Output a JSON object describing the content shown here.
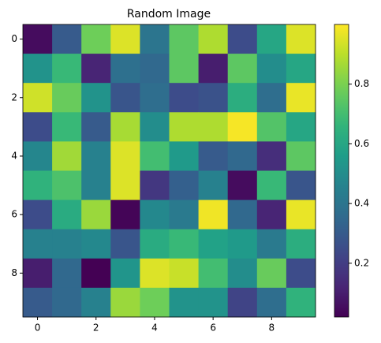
{
  "chart_data": {
    "type": "heatmap",
    "title": "Random Image",
    "colormap": "viridis",
    "z": [
      [
        0.05,
        0.3,
        0.78,
        0.95,
        0.4,
        0.75,
        0.88,
        0.25,
        0.6,
        0.95
      ],
      [
        0.52,
        0.68,
        0.12,
        0.38,
        0.35,
        0.75,
        0.1,
        0.75,
        0.5,
        0.6
      ],
      [
        0.93,
        0.77,
        0.52,
        0.28,
        0.37,
        0.25,
        0.27,
        0.63,
        0.37,
        0.97
      ],
      [
        0.25,
        0.68,
        0.3,
        0.87,
        0.5,
        0.88,
        0.88,
        0.99,
        0.73,
        0.6
      ],
      [
        0.47,
        0.86,
        0.45,
        0.95,
        0.7,
        0.55,
        0.3,
        0.35,
        0.15,
        0.75
      ],
      [
        0.65,
        0.72,
        0.45,
        0.95,
        0.18,
        0.32,
        0.45,
        0.05,
        0.68,
        0.28
      ],
      [
        0.25,
        0.62,
        0.85,
        0.03,
        0.48,
        0.42,
        0.98,
        0.35,
        0.12,
        0.97
      ],
      [
        0.45,
        0.45,
        0.48,
        0.28,
        0.62,
        0.68,
        0.58,
        0.55,
        0.42,
        0.63
      ],
      [
        0.1,
        0.35,
        0.02,
        0.53,
        0.95,
        0.92,
        0.7,
        0.5,
        0.77,
        0.25
      ],
      [
        0.3,
        0.35,
        0.45,
        0.85,
        0.78,
        0.52,
        0.52,
        0.22,
        0.37,
        0.65
      ]
    ],
    "xlim": [
      -0.5,
      9.5
    ],
    "ylim": [
      9.5,
      -0.5
    ],
    "xticks": [
      0,
      2,
      4,
      6,
      8
    ],
    "yticks": [
      0,
      2,
      4,
      6,
      8
    ],
    "colorbar": {
      "clim": [
        0.02,
        1.0
      ],
      "ticks": [
        0.2,
        0.4,
        0.6,
        0.8
      ]
    }
  }
}
